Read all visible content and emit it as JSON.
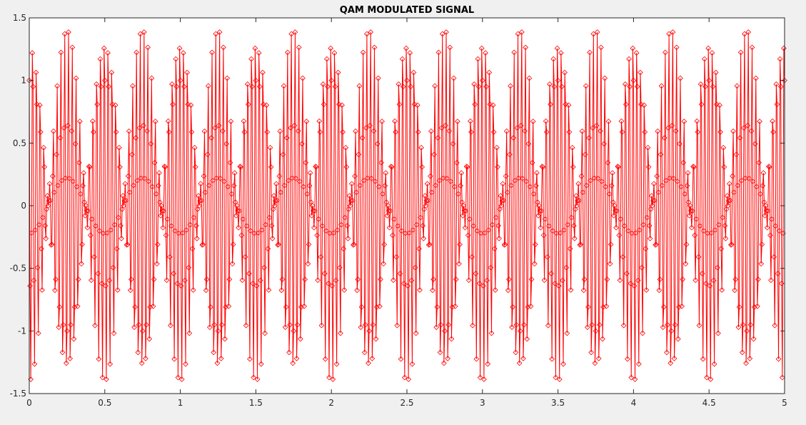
{
  "chart_data": {
    "type": "line",
    "title": "QAM MODULATED SIGNAL",
    "xlabel": "",
    "ylabel": "",
    "xlim": [
      0,
      5
    ],
    "ylim": [
      -1.5,
      1.5
    ],
    "xticks": [
      0,
      0.5,
      1,
      1.5,
      2,
      2.5,
      3,
      3.5,
      4,
      4.5,
      5
    ],
    "xtick_labels": [
      "0",
      "0.5",
      "1",
      "1.5",
      "2",
      "2.5",
      "3",
      "3.5",
      "4",
      "4.5",
      "5"
    ],
    "yticks": [
      -1.5,
      -1,
      -0.5,
      0,
      0.5,
      1,
      1.5
    ],
    "ytick_labels": [
      "-1.5",
      "-1",
      "-0.5",
      "0",
      "0.5",
      "1",
      "1.5"
    ],
    "grid": false,
    "legend": "none",
    "series": [
      {
        "color": "#ff0000",
        "marker": "diamond",
        "line": "solid",
        "signal": {
          "components": [
            {
              "amplitude": 0.707,
              "frequency": 38,
              "phase": 0.785
            },
            {
              "amplitude": 0.707,
              "frequency": 42,
              "phase": 0.785
            }
          ],
          "x_start": 0,
          "x_end": 5,
          "num_samples": 1001
        }
      }
    ]
  },
  "style": {
    "figure_background": "#f0f0f0",
    "axes_background": "#ffffff",
    "axis_color": "#262626",
    "series_color": "#ff0000"
  }
}
